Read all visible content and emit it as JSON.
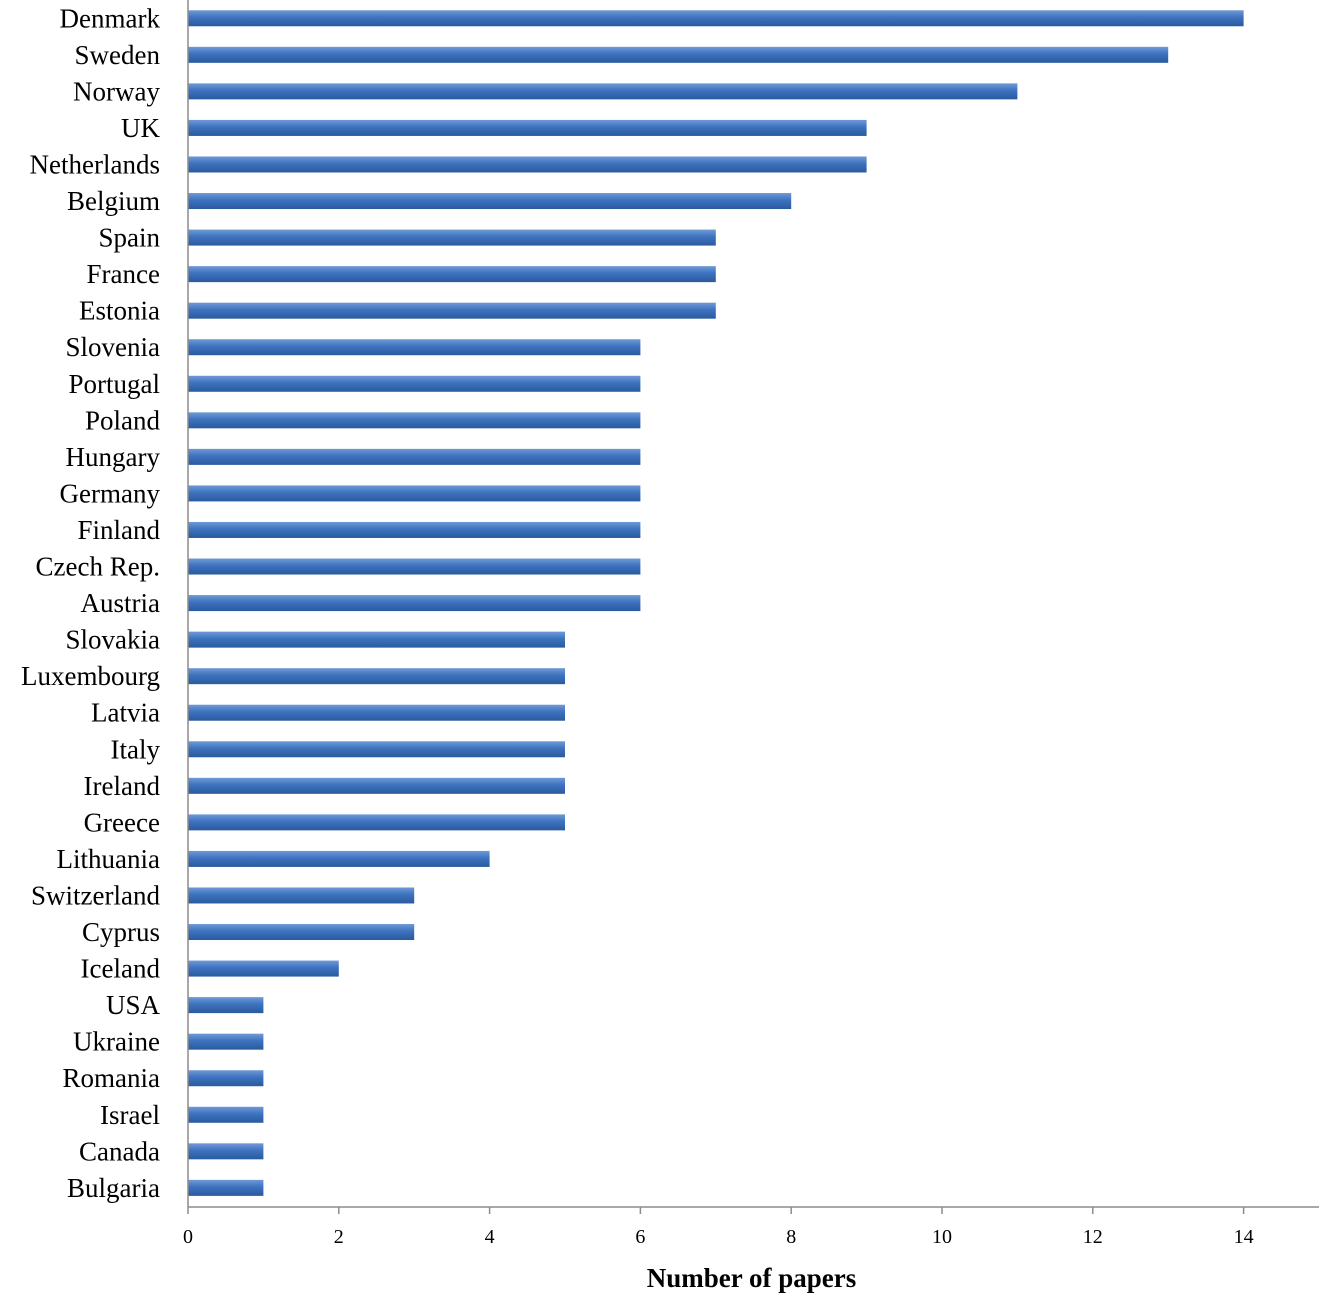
{
  "chart_data": {
    "type": "bar",
    "orientation": "horizontal",
    "categories": [
      "Denmark",
      "Sweden",
      "Norway",
      "UK",
      "Netherlands",
      "Belgium",
      "Spain",
      "France",
      "Estonia",
      "Slovenia",
      "Portugal",
      "Poland",
      "Hungary",
      "Germany",
      "Finland",
      "Czech Rep.",
      "Austria",
      "Slovakia",
      "Luxembourg",
      "Latvia",
      "Italy",
      "Ireland",
      "Greece",
      "Lithuania",
      "Switzerland",
      "Cyprus",
      "Iceland",
      "USA",
      "Ukraine",
      "Romania",
      "Israel",
      "Canada",
      "Bulgaria"
    ],
    "values": [
      14,
      13,
      11,
      9,
      9,
      8,
      7,
      7,
      7,
      6,
      6,
      6,
      6,
      6,
      6,
      6,
      6,
      5,
      5,
      5,
      5,
      5,
      5,
      4,
      3,
      3,
      2,
      1,
      1,
      1,
      1,
      1,
      1
    ],
    "xlabel": "Number of papers",
    "ylabel": "",
    "title": "",
    "xlim": [
      0,
      15
    ],
    "xticks": [
      "0",
      "2",
      "4",
      "6",
      "8",
      "10",
      "12",
      "14"
    ],
    "grid": false,
    "legend": "none",
    "bar_color": "#3d72bf",
    "bar_highlight": "#6f9ad6",
    "bar_shadow": "#2a5a9e"
  }
}
